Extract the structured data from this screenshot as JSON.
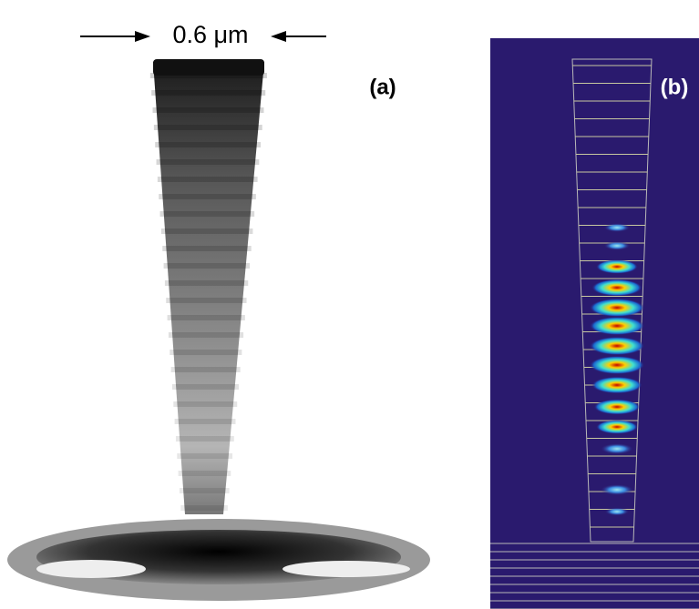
{
  "figure": {
    "scale_label": "0.6 μm",
    "panels": [
      {
        "label": "(a)"
      },
      {
        "label": "(b)"
      }
    ]
  }
}
